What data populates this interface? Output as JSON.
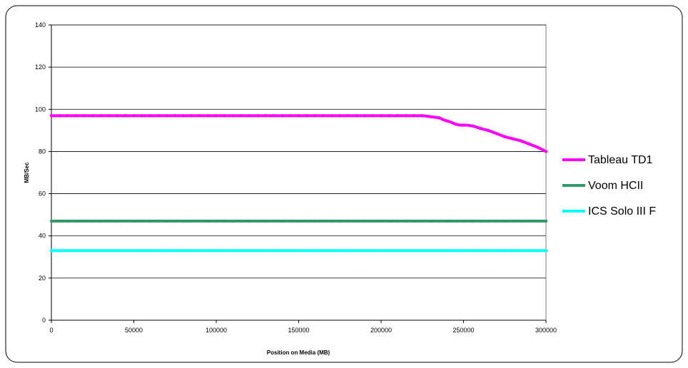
{
  "chart_data": {
    "type": "line",
    "title": "",
    "xlabel": "Position on Media (MB)",
    "ylabel": "MB/Sec",
    "xlim": [
      0,
      300000
    ],
    "ylim": [
      0,
      140
    ],
    "x_ticks": [
      0,
      50000,
      100000,
      150000,
      200000,
      250000,
      300000
    ],
    "y_ticks": [
      0,
      20,
      40,
      60,
      80,
      100,
      120,
      140
    ],
    "grid": "horizontal",
    "legend_position": "right",
    "series": [
      {
        "name": "Tableau TD1",
        "color": "#ff00ff",
        "x": [
          0,
          50000,
          100000,
          150000,
          200000,
          225000,
          230000,
          235000,
          238000,
          242000,
          245000,
          248000,
          252000,
          256000,
          260000,
          265000,
          270000,
          275000,
          280000,
          285000,
          290000,
          295000,
          300000
        ],
        "y": [
          97,
          97,
          97,
          97,
          97,
          97,
          96.5,
          96,
          95,
          94,
          93,
          92.5,
          92.5,
          92,
          91,
          90,
          88.5,
          87,
          86,
          85,
          83.5,
          82,
          80
        ]
      },
      {
        "name": "Voom HCII",
        "color": "#339966",
        "x": [
          0,
          300000
        ],
        "y": [
          47,
          47
        ]
      },
      {
        "name": "ICS Solo III F",
        "color": "#00ffff",
        "x": [
          0,
          300000
        ],
        "y": [
          33,
          33
        ]
      }
    ]
  }
}
